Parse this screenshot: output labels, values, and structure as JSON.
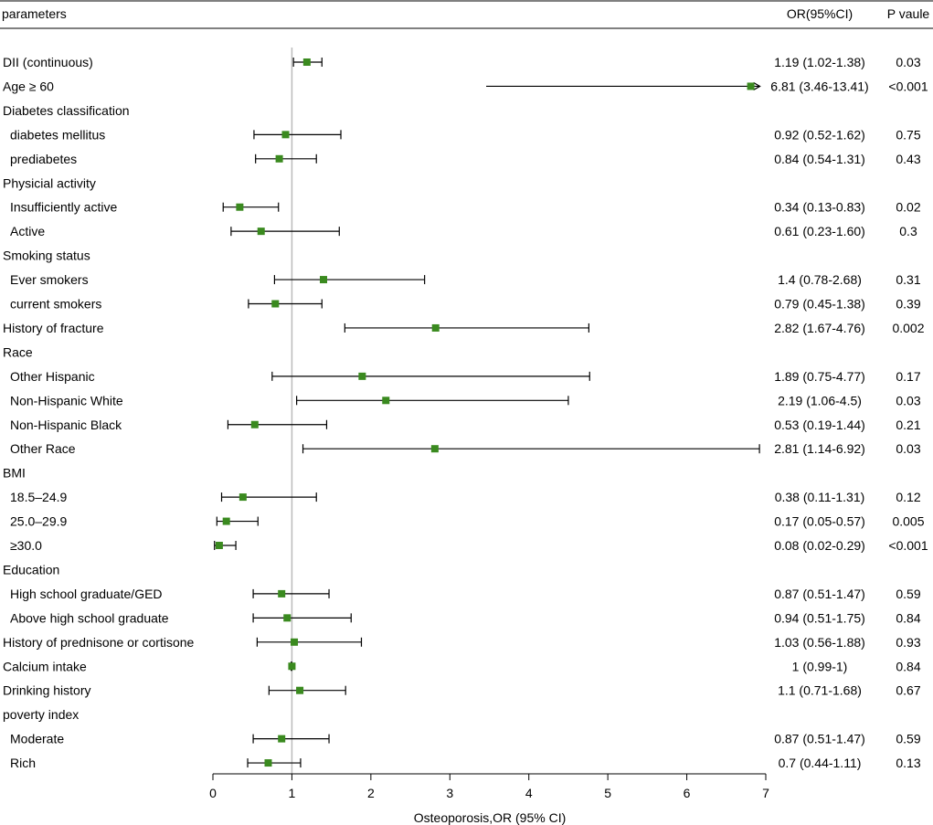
{
  "chart_data": {
    "type": "forest",
    "header": {
      "param_label": "parameters",
      "or_label": "OR(95%CI)",
      "p_label": "P vaule"
    },
    "xlabel": "Osteoporosis,OR (95% CI)",
    "xlim": [
      0,
      7
    ],
    "xticks": [
      "0",
      "1",
      "2",
      "3",
      "4",
      "5",
      "6",
      "7"
    ],
    "reference_line": 1,
    "colors": {
      "marker": "#3a8a1f",
      "line": "#000000",
      "reference": "#bbbbbb"
    },
    "rows": [
      {
        "label": "DII (continuous)",
        "indent": false,
        "or": 1.19,
        "lo": 1.02,
        "hi": 1.38,
        "or_text": "1.19 (1.02-1.38)",
        "p": "0.03"
      },
      {
        "label": "Age ≥ 60",
        "indent": false,
        "or": 6.81,
        "lo": 3.46,
        "hi": 13.41,
        "or_text": "6.81 (3.46-13.41)",
        "p": "<0.001",
        "arrow": true
      },
      {
        "label": "Diabetes classification",
        "indent": false
      },
      {
        "label": "diabetes mellitus",
        "indent": true,
        "or": 0.92,
        "lo": 0.52,
        "hi": 1.62,
        "or_text": "0.92 (0.52-1.62)",
        "p": "0.75"
      },
      {
        "label": "prediabetes",
        "indent": true,
        "or": 0.84,
        "lo": 0.54,
        "hi": 1.31,
        "or_text": "0.84 (0.54-1.31)",
        "p": "0.43"
      },
      {
        "label": "Physicial activity",
        "indent": false
      },
      {
        "label": "Insufficiently active",
        "indent": true,
        "or": 0.34,
        "lo": 0.13,
        "hi": 0.83,
        "or_text": "0.34 (0.13-0.83)",
        "p": "0.02"
      },
      {
        "label": "Active",
        "indent": true,
        "or": 0.61,
        "lo": 0.23,
        "hi": 1.6,
        "or_text": "0.61 (0.23-1.60)",
        "p": "0.3"
      },
      {
        "label": "Smoking status",
        "indent": false
      },
      {
        "label": "Ever smokers",
        "indent": true,
        "or": 1.4,
        "lo": 0.78,
        "hi": 2.68,
        "or_text": "1.4 (0.78-2.68)",
        "p": "0.31"
      },
      {
        "label": "current smokers",
        "indent": true,
        "or": 0.79,
        "lo": 0.45,
        "hi": 1.38,
        "or_text": "0.79 (0.45-1.38)",
        "p": "0.39"
      },
      {
        "label": "History of fracture",
        "indent": false,
        "or": 2.82,
        "lo": 1.67,
        "hi": 4.76,
        "or_text": "2.82 (1.67-4.76)",
        "p": "0.002"
      },
      {
        "label": "Race",
        "indent": false
      },
      {
        "label": "Other Hispanic",
        "indent": true,
        "or": 1.89,
        "lo": 0.75,
        "hi": 4.77,
        "or_text": "1.89 (0.75-4.77)",
        "p": "0.17"
      },
      {
        "label": "Non-Hispanic White",
        "indent": true,
        "or": 2.19,
        "lo": 1.06,
        "hi": 4.5,
        "or_text": "2.19 (1.06-4.5)",
        "p": "0.03"
      },
      {
        "label": "Non-Hispanic Black",
        "indent": true,
        "or": 0.53,
        "lo": 0.19,
        "hi": 1.44,
        "or_text": "0.53 (0.19-1.44)",
        "p": "0.21"
      },
      {
        "label": "Other Race",
        "indent": true,
        "or": 2.81,
        "lo": 1.14,
        "hi": 6.92,
        "or_text": "2.81 (1.14-6.92)",
        "p": "0.03"
      },
      {
        "label": "BMI",
        "indent": false
      },
      {
        "label": "18.5–24.9",
        "indent": true,
        "or": 0.38,
        "lo": 0.11,
        "hi": 1.31,
        "or_text": "0.38 (0.11-1.31)",
        "p": "0.12"
      },
      {
        "label": "25.0–29.9",
        "indent": true,
        "or": 0.17,
        "lo": 0.05,
        "hi": 0.57,
        "or_text": "0.17 (0.05-0.57)",
        "p": "0.005"
      },
      {
        "label": "≥30.0",
        "indent": true,
        "or": 0.08,
        "lo": 0.02,
        "hi": 0.29,
        "or_text": "0.08 (0.02-0.29)",
        "p": "<0.001"
      },
      {
        "label": "Education",
        "indent": false
      },
      {
        "label": "High school graduate/GED",
        "indent": true,
        "or": 0.87,
        "lo": 0.51,
        "hi": 1.47,
        "or_text": "0.87 (0.51-1.47)",
        "p": "0.59"
      },
      {
        "label": "Above high school graduate",
        "indent": true,
        "or": 0.94,
        "lo": 0.51,
        "hi": 1.75,
        "or_text": "0.94 (0.51-1.75)",
        "p": "0.84"
      },
      {
        "label": "History of prednisone or cortisone",
        "indent": false,
        "or": 1.03,
        "lo": 0.56,
        "hi": 1.88,
        "or_text": "1.03 (0.56-1.88)",
        "p": "0.93"
      },
      {
        "label": "Calcium intake",
        "indent": false,
        "or": 1.0,
        "lo": 0.99,
        "hi": 1.0,
        "or_text": "1 (0.99-1)",
        "p": "0.84"
      },
      {
        "label": "Drinking history",
        "indent": false,
        "or": 1.1,
        "lo": 0.71,
        "hi": 1.68,
        "or_text": "1.1 (0.71-1.68)",
        "p": "0.67"
      },
      {
        "label": "poverty index",
        "indent": false
      },
      {
        "label": "Moderate",
        "indent": true,
        "or": 0.87,
        "lo": 0.51,
        "hi": 1.47,
        "or_text": "0.87 (0.51-1.47)",
        "p": "0.59"
      },
      {
        "label": "Rich",
        "indent": true,
        "or": 0.7,
        "lo": 0.44,
        "hi": 1.11,
        "or_text": "0.7 (0.44-1.11)",
        "p": "0.13"
      }
    ]
  }
}
